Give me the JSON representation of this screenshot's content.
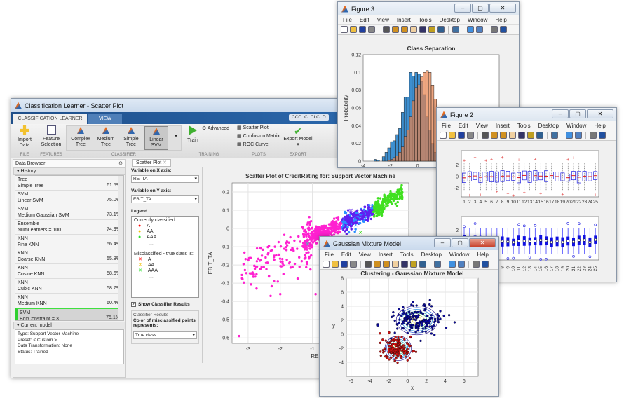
{
  "main_window": {
    "title": "Classification Learner - Scatter Plot",
    "tabs": [
      "CLASSIFICATION LEARNER",
      "VIEW"
    ],
    "quick_access": [
      "CCC",
      "C",
      "CLC",
      "D"
    ],
    "ribbon": {
      "import_data": "Import Data",
      "feature_selection": "Feature Selection",
      "classifiers": [
        "Complex Tree",
        "Medium Tree",
        "Simple Tree",
        "Linear SVM"
      ],
      "selected_classifier": "Linear SVM",
      "train": "Train",
      "advanced": "Advanced",
      "plots": [
        "Scatter Plot",
        "Confusion Matrix",
        "ROC Curve"
      ],
      "export_model": "Export Model",
      "groups": [
        "FILE",
        "FEATURES",
        "CLASSIFIER",
        "TRAINING",
        "PLOTS",
        "EXPORT"
      ]
    },
    "data_browser": {
      "title": "Data Browser",
      "history_label": "History",
      "history": [
        {
          "type": "Tree",
          "name": "Simple Tree",
          "accuracy": "61.5%"
        },
        {
          "type": "SVM",
          "name": "Linear SVM",
          "accuracy": "75.0%"
        },
        {
          "type": "SVM",
          "name": "Medium Gaussian SVM",
          "accuracy": "73.1%"
        },
        {
          "type": "Ensemble",
          "name": "NumLearners = 100",
          "accuracy": "74.9%"
        },
        {
          "type": "KNN",
          "name": "Fine KNN",
          "accuracy": "56.4%"
        },
        {
          "type": "KNN",
          "name": "Coarse KNN",
          "accuracy": "55.8%"
        },
        {
          "type": "KNN",
          "name": "Cosine KNN",
          "accuracy": "58.6%"
        },
        {
          "type": "KNN",
          "name": "Cubic KNN",
          "accuracy": "58.7%"
        },
        {
          "type": "KNN",
          "name": "Medium KNN",
          "accuracy": "60.4%"
        },
        {
          "type": "SVM",
          "name": "BoxConstraint = 3",
          "accuracy": "75.1%",
          "selected": true
        }
      ],
      "current_model_label": "Current model",
      "current_model": [
        "Type: Support Vector Machine",
        "Preset: < Custom >",
        "Data Transformation: None",
        "Status: Trained"
      ]
    },
    "scatter_panel": {
      "tab": "Scatter Plot",
      "x_label": "Variable on X axis:",
      "x_value": "RE_TA",
      "y_label": "Variable on Y axis:",
      "y_value": "EBIT_TA",
      "legend_label": "Legend",
      "correct_label": "Correctly classified",
      "misclassified_label": "Misclassified - true class is:",
      "classes": [
        "A",
        "AA",
        "AAA"
      ],
      "more": "...",
      "show_results_label": "Show Classifier Results",
      "show_results_checked": true,
      "results_group": "Classifier Results",
      "color_label": "Color of misclassified points represents:",
      "color_value": "True class"
    },
    "colors": {
      "A": "#ff0000",
      "AA": "#f0c000",
      "AAA": "#30e030"
    }
  },
  "chart_data": [
    {
      "type": "scatter",
      "title": "Scatter Plot of CreditRating for: Support Vector Machine",
      "xlabel": "RE_TA",
      "ylabel": "EBIT_TA",
      "xticks": [
        -3,
        -2,
        -1
      ],
      "yticks": [
        0.2,
        0.1,
        0,
        -0.1,
        -0.2,
        -0.3,
        -0.4,
        -0.5,
        -0.6
      ],
      "xlim": [
        -3.5,
        2
      ],
      "ylim": [
        -0.63,
        0.25
      ],
      "grid": true,
      "series_colors": [
        "#ff20d0",
        "#6020f0",
        "#2a90ff",
        "#40e020",
        "#20e0b0"
      ]
    },
    {
      "type": "bar",
      "window": "Figure 3",
      "title": "Class Separation",
      "ylabel": "Probability",
      "xticks": [
        -4,
        -2,
        0
      ],
      "yticks": [
        0,
        0.02,
        0.04,
        0.06,
        0.08,
        0.1,
        0.12
      ],
      "xlim": [
        -4,
        6
      ],
      "ylim": [
        0,
        0.12
      ],
      "bin_start": -3.2,
      "bin_width": 0.2,
      "series": [
        {
          "color": "#3d8fd0",
          "values": [
            0.002,
            0.001,
            0,
            0.005,
            0.01,
            0.015,
            0.022,
            0.023,
            0.03,
            0.037,
            0.055,
            0.072,
            0.072,
            0.1,
            0.096,
            0.1,
            0.098,
            0.09,
            0.075,
            0.05,
            0.035,
            0.02,
            0.01,
            0.005
          ]
        },
        {
          "color": "#e8804a",
          "values": [
            0,
            0,
            0,
            0,
            0,
            0.001,
            0.002,
            0.004,
            0.006,
            0.01,
            0.016,
            0.028,
            0.035,
            0.05,
            0.068,
            0.083,
            0.086,
            0.095,
            0.1,
            0.102,
            0.1,
            0.085,
            0.07,
            0.06,
            0.045,
            0.03,
            0.02,
            0.01,
            0.005
          ]
        }
      ]
    },
    {
      "type": "box",
      "window": "Figure 2",
      "categories": [
        "1",
        "2",
        "3",
        "4",
        "5",
        "6",
        "7",
        "8",
        "9",
        "10",
        "11",
        "12",
        "13",
        "14",
        "15",
        "16",
        "17",
        "18",
        "19",
        "20",
        "21",
        "22",
        "23",
        "24",
        "25"
      ],
      "yticks": [
        2,
        0,
        -2
      ]
    },
    {
      "type": "scatter",
      "window": "Gaussian Mixture Model",
      "title": "Clustering - Gaussian Mixture Model",
      "xlabel": "x",
      "ylabel": "y",
      "xticks": [
        -6,
        -4,
        -2,
        0,
        2,
        4,
        6
      ],
      "yticks": [
        8,
        6,
        4,
        2,
        0,
        -2,
        -4
      ],
      "xlim": [
        -6.5,
        7.5
      ],
      "ylim": [
        -6,
        8
      ],
      "grid": true,
      "clusters": [
        {
          "color": "#0a0aa0",
          "center": [
            1,
            2
          ]
        },
        {
          "color": "#d01010",
          "center": [
            -1,
            -2
          ]
        }
      ]
    }
  ],
  "figure_windows": {
    "fig3_title": "Figure 3",
    "fig2_title": "Figure 2",
    "gmm_title": "Gaussian Mixture Model",
    "menu": [
      "File",
      "Edit",
      "View",
      "Insert",
      "Tools",
      "Desktop",
      "Window",
      "Help"
    ],
    "toolbar_icons": [
      "new-file",
      "open-folder",
      "save",
      "print",
      "|",
      "pointer",
      "zoom-in",
      "zoom-out",
      "pan-hand",
      "rotate",
      "data-cursor",
      "brush",
      "|",
      "link-plot",
      "|",
      "colorbar",
      "legend",
      "|",
      "hide-plot-tools",
      "show-plot-tools"
    ]
  }
}
